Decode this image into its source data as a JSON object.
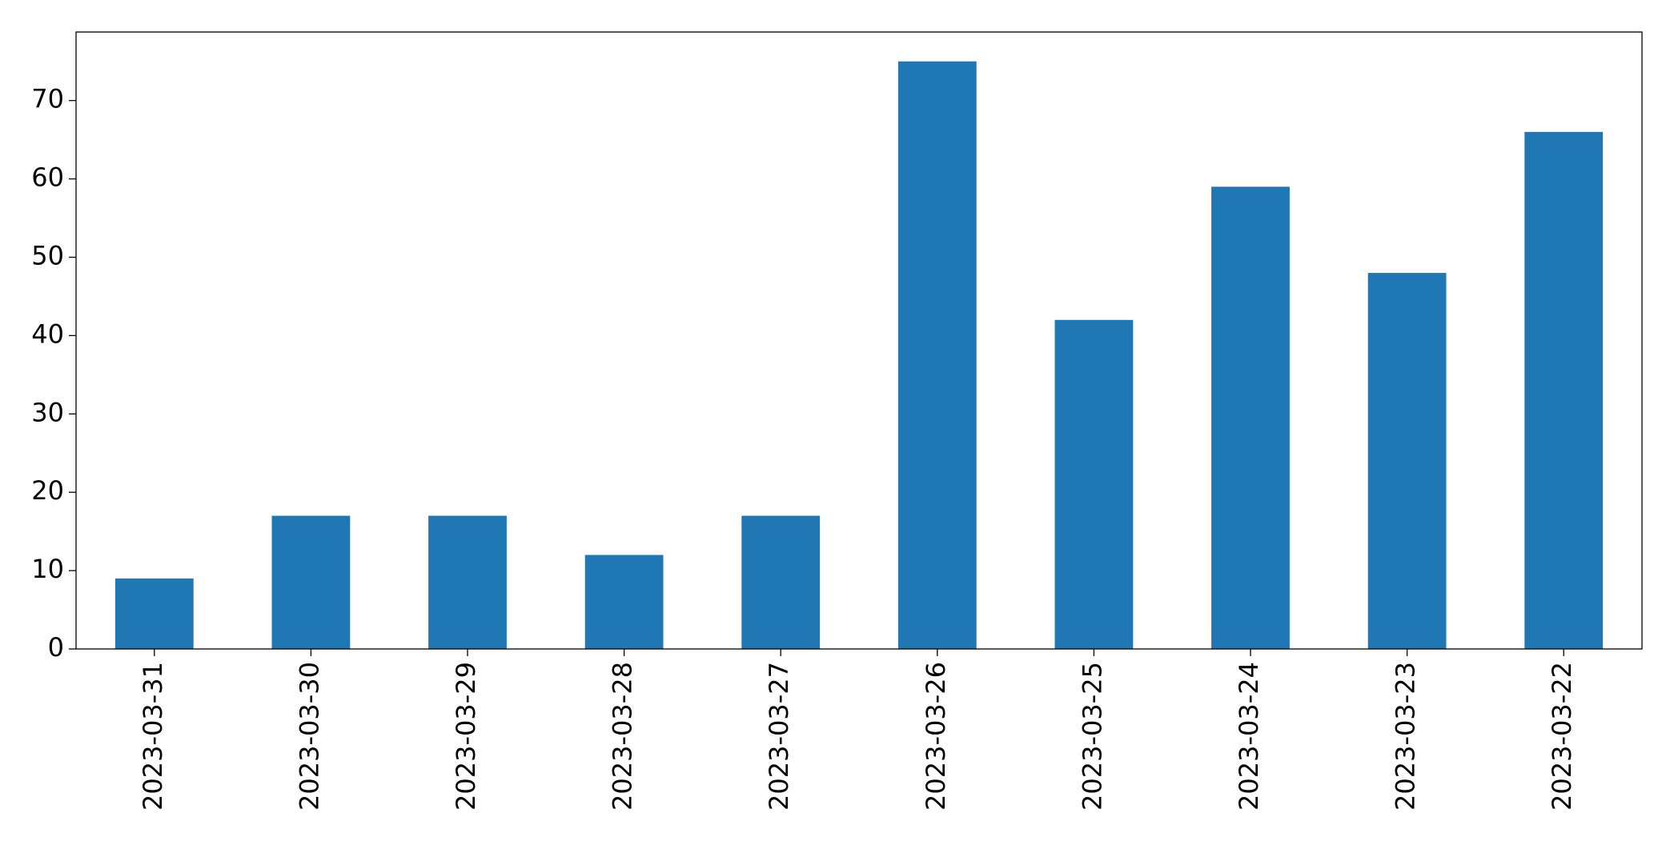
{
  "chart_data": {
    "type": "bar",
    "categories": [
      "2023-03-31",
      "2023-03-30",
      "2023-03-29",
      "2023-03-28",
      "2023-03-27",
      "2023-03-26",
      "2023-03-25",
      "2023-03-24",
      "2023-03-23",
      "2023-03-22"
    ],
    "values": [
      9,
      17,
      17,
      12,
      17,
      75,
      42,
      59,
      48,
      66
    ],
    "color": "#1f77b4",
    "ylim": [
      0,
      78.75
    ],
    "yticks": [
      0,
      10,
      20,
      30,
      40,
      50,
      60,
      70
    ],
    "grid": false
  }
}
